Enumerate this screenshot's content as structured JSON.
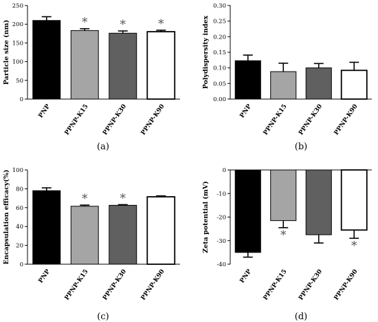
{
  "chart_data": [
    {
      "panel_label": "(a)",
      "type": "bar",
      "ylabel": "Particle size (nm)",
      "ylim": [
        0,
        250
      ],
      "yticks": [
        "0",
        "50",
        "100",
        "150",
        "200",
        "250"
      ],
      "categories": [
        "PNP",
        "PPNP-K15",
        "PPNP-K30",
        "PPNP-K90"
      ],
      "values": [
        210,
        183,
        176,
        180
      ],
      "errors": [
        10,
        5,
        6,
        4
      ],
      "significant": [
        false,
        true,
        true,
        true
      ],
      "bar_colors": [
        "#000000",
        "#a5a5a5",
        "#606060",
        "#ffffff"
      ]
    },
    {
      "panel_label": "(b)",
      "type": "bar",
      "ylabel": "Polydispersity index",
      "ylim": [
        0,
        0.3
      ],
      "yticks": [
        "0.00",
        "0.05",
        "0.10",
        "0.15",
        "0.20",
        "0.25",
        "0.30"
      ],
      "categories": [
        "PNP",
        "PPNP-K15",
        "PPNP-K30",
        "PPNP-K90"
      ],
      "values": [
        0.123,
        0.088,
        0.1,
        0.092
      ],
      "errors": [
        0.018,
        0.027,
        0.014,
        0.026
      ],
      "significant": [
        false,
        false,
        false,
        false
      ],
      "bar_colors": [
        "#000000",
        "#a5a5a5",
        "#606060",
        "#ffffff"
      ]
    },
    {
      "panel_label": "(c)",
      "type": "bar",
      "ylabel": "Encapsulation efficacy(%)",
      "ylim": [
        0,
        100
      ],
      "yticks": [
        "0",
        "20",
        "40",
        "60",
        "80",
        "100"
      ],
      "categories": [
        "PNP",
        "PPNP-K15",
        "PPNP-K30",
        "PPNP-K90"
      ],
      "values": [
        78,
        61.5,
        62.5,
        71.5
      ],
      "errors": [
        3,
        1.2,
        0.7,
        1
      ],
      "significant": [
        false,
        true,
        true,
        false
      ],
      "bar_colors": [
        "#000000",
        "#a5a5a5",
        "#606060",
        "#ffffff"
      ]
    },
    {
      "panel_label": "(d)",
      "type": "bar",
      "ylabel": "Zeta potential (mV)",
      "ylim": [
        -40,
        0
      ],
      "yticks": [
        "-40",
        "-30",
        "-20",
        "-10",
        "0"
      ],
      "categories": [
        "PNP",
        "PPNP-K15",
        "PPNP-K30",
        "PPNP-K90"
      ],
      "values": [
        -35,
        -21.5,
        -27.5,
        -25.5
      ],
      "errors": [
        2,
        3,
        3.5,
        3.5
      ],
      "significant": [
        false,
        true,
        false,
        true
      ],
      "bar_colors": [
        "#000000",
        "#a5a5a5",
        "#606060",
        "#ffffff"
      ]
    }
  ],
  "significance_marker": "*"
}
